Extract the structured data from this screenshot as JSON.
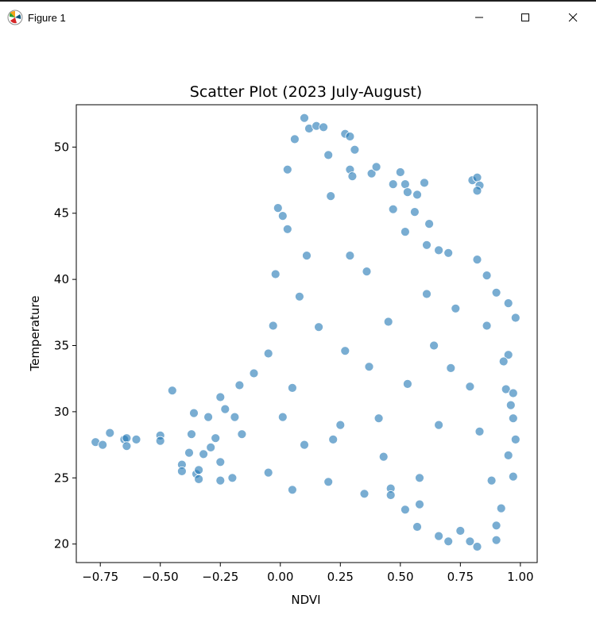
{
  "window": {
    "title": "Figure 1",
    "icon": "matplotlib-figure-icon",
    "controls": [
      "minimize-icon",
      "maximize-icon",
      "close-icon"
    ]
  },
  "chart_data": {
    "type": "scatter",
    "title": "Scatter Plot (2023 July-August)",
    "xlabel": "NDVI",
    "ylabel": "Temperature",
    "xlim": [
      -0.85,
      1.07
    ],
    "ylim": [
      18.6,
      53.2
    ],
    "xticks": [
      -0.75,
      -0.5,
      -0.25,
      0.0,
      0.25,
      0.5,
      0.75,
      1.0
    ],
    "xtick_labels": [
      "−0.75",
      "−0.50",
      "−0.25",
      "0.00",
      "0.25",
      "0.50",
      "0.75",
      "1.00"
    ],
    "yticks": [
      20,
      25,
      30,
      35,
      40,
      45,
      50
    ],
    "ytick_labels": [
      "20",
      "25",
      "30",
      "35",
      "40",
      "45",
      "50"
    ],
    "grid": false,
    "marker_color": "#1f77b4",
    "marker_edge_color": "#ffffff",
    "marker_alpha": 0.6,
    "series": [
      {
        "points": [
          [
            -0.77,
            27.7
          ],
          [
            -0.74,
            27.5
          ],
          [
            -0.71,
            28.4
          ],
          [
            -0.65,
            27.9
          ],
          [
            -0.64,
            28.0
          ],
          [
            -0.64,
            27.4
          ],
          [
            -0.6,
            27.9
          ],
          [
            -0.5,
            28.2
          ],
          [
            -0.5,
            27.8
          ],
          [
            -0.45,
            31.6
          ],
          [
            -0.41,
            26.0
          ],
          [
            -0.41,
            25.5
          ],
          [
            -0.38,
            26.9
          ],
          [
            -0.37,
            28.3
          ],
          [
            -0.36,
            29.9
          ],
          [
            -0.35,
            25.3
          ],
          [
            -0.34,
            25.6
          ],
          [
            -0.34,
            24.9
          ],
          [
            -0.32,
            26.8
          ],
          [
            -0.3,
            29.6
          ],
          [
            -0.29,
            27.3
          ],
          [
            -0.27,
            28.0
          ],
          [
            -0.25,
            31.1
          ],
          [
            -0.25,
            26.2
          ],
          [
            -0.25,
            24.8
          ],
          [
            -0.23,
            30.2
          ],
          [
            -0.2,
            25.0
          ],
          [
            -0.19,
            29.6
          ],
          [
            -0.17,
            32.0
          ],
          [
            -0.16,
            28.3
          ],
          [
            -0.11,
            32.9
          ],
          [
            -0.05,
            34.4
          ],
          [
            -0.05,
            25.4
          ],
          [
            -0.03,
            36.5
          ],
          [
            -0.02,
            40.4
          ],
          [
            -0.01,
            45.4
          ],
          [
            0.01,
            44.8
          ],
          [
            0.03,
            48.3
          ],
          [
            0.03,
            43.8
          ],
          [
            0.06,
            50.6
          ],
          [
            0.1,
            52.2
          ],
          [
            0.12,
            51.4
          ],
          [
            0.15,
            51.6
          ],
          [
            0.18,
            51.5
          ],
          [
            0.2,
            49.4
          ],
          [
            0.27,
            51.0
          ],
          [
            0.29,
            50.8
          ],
          [
            0.31,
            49.8
          ],
          [
            0.29,
            48.3
          ],
          [
            0.3,
            47.8
          ],
          [
            0.38,
            48.0
          ],
          [
            0.4,
            48.5
          ],
          [
            0.47,
            47.2
          ],
          [
            0.5,
            48.1
          ],
          [
            0.52,
            47.2
          ],
          [
            0.53,
            46.6
          ],
          [
            0.6,
            47.3
          ],
          [
            0.57,
            46.4
          ],
          [
            0.56,
            45.1
          ],
          [
            0.62,
            44.2
          ],
          [
            0.52,
            43.6
          ],
          [
            0.66,
            42.2
          ],
          [
            0.7,
            42.0
          ],
          [
            0.8,
            47.5
          ],
          [
            0.82,
            47.7
          ],
          [
            0.83,
            47.1
          ],
          [
            0.82,
            46.7
          ],
          [
            0.82,
            41.5
          ],
          [
            0.86,
            40.3
          ],
          [
            0.9,
            39.0
          ],
          [
            0.95,
            38.2
          ],
          [
            0.98,
            37.1
          ],
          [
            0.95,
            34.3
          ],
          [
            0.93,
            33.8
          ],
          [
            0.94,
            31.7
          ],
          [
            0.97,
            31.4
          ],
          [
            0.96,
            30.5
          ],
          [
            0.97,
            29.5
          ],
          [
            0.98,
            27.9
          ],
          [
            0.95,
            26.7
          ],
          [
            0.97,
            25.1
          ],
          [
            0.92,
            22.7
          ],
          [
            0.9,
            21.4
          ],
          [
            0.9,
            20.3
          ],
          [
            0.82,
            19.8
          ],
          [
            0.79,
            20.2
          ],
          [
            0.75,
            21.0
          ],
          [
            0.7,
            20.2
          ],
          [
            0.66,
            20.6
          ],
          [
            0.57,
            21.3
          ],
          [
            0.58,
            23.0
          ],
          [
            0.52,
            22.6
          ],
          [
            0.46,
            24.2
          ],
          [
            0.46,
            23.7
          ],
          [
            0.35,
            23.8
          ],
          [
            0.2,
            24.7
          ],
          [
            0.05,
            24.1
          ],
          [
            0.22,
            27.9
          ],
          [
            0.37,
            33.4
          ],
          [
            0.45,
            36.8
          ],
          [
            0.61,
            38.9
          ],
          [
            0.71,
            33.3
          ],
          [
            0.11,
            41.8
          ],
          [
            0.29,
            41.8
          ],
          [
            0.58,
            25.0
          ],
          [
            0.01,
            29.6
          ],
          [
            0.16,
            36.4
          ],
          [
            0.47,
            45.3
          ],
          [
            0.66,
            29.0
          ],
          [
            0.83,
            28.5
          ],
          [
            0.41,
            29.5
          ],
          [
            0.27,
            34.6
          ],
          [
            0.1,
            27.5
          ],
          [
            0.53,
            32.1
          ],
          [
            0.73,
            37.8
          ],
          [
            0.21,
            46.3
          ],
          [
            0.05,
            31.8
          ],
          [
            0.88,
            24.8
          ],
          [
            0.36,
            40.6
          ],
          [
            0.61,
            42.6
          ],
          [
            0.79,
            31.9
          ],
          [
            0.08,
            38.7
          ],
          [
            0.43,
            26.6
          ],
          [
            0.64,
            35.0
          ],
          [
            0.25,
            29.0
          ],
          [
            0.86,
            36.5
          ]
        ]
      }
    ]
  }
}
